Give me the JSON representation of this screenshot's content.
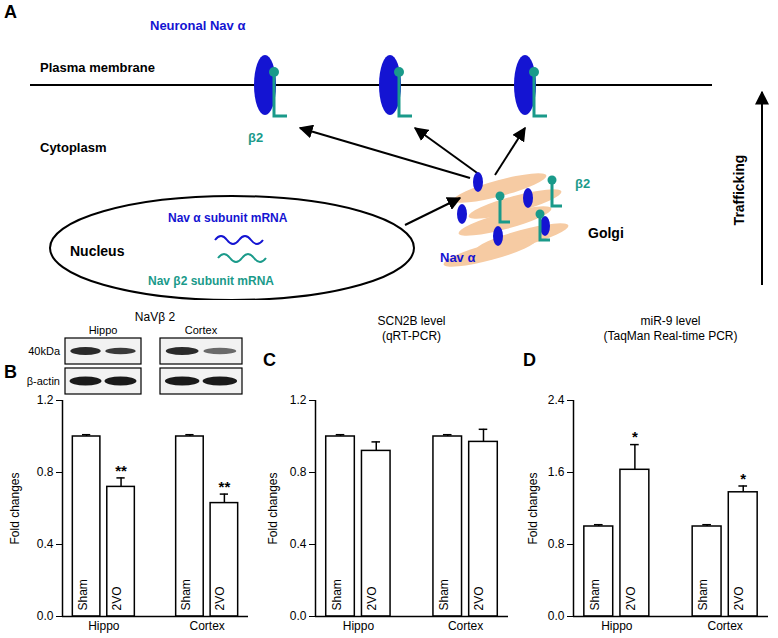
{
  "diagram": {
    "panel_label": "A",
    "labels": {
      "channel": "Neuronal Nav α",
      "membrane": "Plasma membrane",
      "cytoplasm": "Cytoplasm",
      "beta_membrane": "β2",
      "nucleus": "Nucleus",
      "alpha_mrna": "Nav α subunit mRNA",
      "beta_mrna": "Nav β2 subunit mRNA",
      "golgi": "Golgi",
      "golgi_alpha": "Nav α",
      "golgi_beta": "β2",
      "trafficking": "Trafficking"
    }
  },
  "chart_data": [
    {
      "panel_label": "B",
      "type": "bar",
      "title": "NaVβ 2",
      "ylabel": "Fold changes",
      "categories": [
        "Hippo",
        "Cortex"
      ],
      "series": [
        {
          "name": "Sham",
          "color": "#ffffff",
          "values": [
            1.0,
            1.0
          ],
          "errors": [
            0.01,
            0.01
          ]
        },
        {
          "name": "2VO",
          "color": "#ffffff",
          "values": [
            0.72,
            0.63
          ],
          "errors": [
            0.05,
            0.05
          ],
          "significance": [
            "**",
            "**"
          ]
        }
      ],
      "ylim": [
        0,
        1.2
      ],
      "yticks": [
        {
          "value": 0,
          "label": "0.0"
        },
        0.4,
        0.8,
        1.2
      ],
      "blot": {
        "regions": [
          "Hippo",
          "Cortex"
        ],
        "size_label": "40kDa",
        "control": "β-actin"
      }
    },
    {
      "panel_label": "C",
      "type": "bar",
      "title": "SCN2B level\n(qRT-PCR)",
      "ylabel": "Fold changes",
      "categories": [
        "Hippo",
        "Cortex"
      ],
      "series": [
        {
          "name": "Sham",
          "color": "#ffffff",
          "values": [
            1.0,
            1.0
          ],
          "errors": [
            0.01,
            0.01
          ]
        },
        {
          "name": "2VO",
          "color": "#ffffff",
          "values": [
            0.92,
            0.97
          ],
          "errors": [
            0.05,
            0.07
          ]
        }
      ],
      "ylim": [
        0,
        1.2
      ],
      "yticks": [
        {
          "value": 0,
          "label": "0.0"
        },
        0.4,
        0.8,
        1.2
      ]
    },
    {
      "panel_label": "D",
      "type": "bar",
      "title": "miR-9 level\n(TaqMan Real-time PCR)",
      "ylabel": "Fold changes",
      "categories": [
        "Hippo",
        "Cortex"
      ],
      "series": [
        {
          "name": "Sham",
          "color": "#ffffff",
          "values": [
            1.0,
            1.0
          ],
          "errors": [
            0.02,
            0.02
          ]
        },
        {
          "name": "2VO",
          "color": "#ffffff",
          "values": [
            1.63,
            1.38
          ],
          "errors": [
            0.28,
            0.07
          ],
          "significance": [
            "*",
            "*"
          ]
        }
      ],
      "ylim": [
        0,
        2.4
      ],
      "yticks": [
        {
          "value": 0,
          "label": "0.0"
        },
        0.8,
        1.6,
        2.4
      ]
    }
  ]
}
